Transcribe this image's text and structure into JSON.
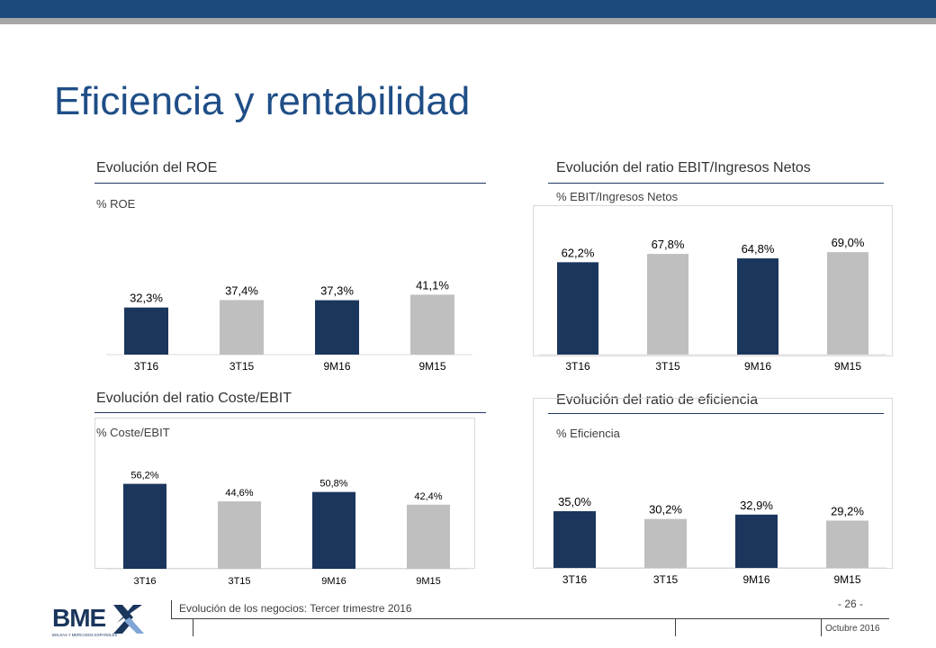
{
  "page": {
    "title": "Eficiencia y rentabilidad",
    "footer": "Evolución de los negocios: Tercer trimestre 2016",
    "page_number": "- 26 -",
    "date": "Octubre 2016",
    "logo_text": "BME",
    "logo_tagline": "BOLSAS Y MERCADOS ESPAÑOLES"
  },
  "colors": {
    "dark": "#1b365d",
    "light": "#bfbfbf",
    "title": "#1f4e87",
    "bar_top": "#1b4a7c"
  },
  "chart_data": [
    {
      "type": "bar",
      "title": "Evolución del ROE",
      "unit_label": "% ROE",
      "categories": [
        "3T16",
        "3T15",
        "9M16",
        "9M15"
      ],
      "values": [
        32.3,
        37.4,
        37.3,
        41.1
      ],
      "labels": [
        "32,3%",
        "37,4%",
        "37,3%",
        "41,1%"
      ]
    },
    {
      "type": "bar",
      "title": "Evolución del ratio EBIT/Ingresos Netos",
      "unit_label": "% EBIT/Ingresos Netos",
      "categories": [
        "3T16",
        "3T15",
        "9M16",
        "9M15"
      ],
      "values": [
        62.2,
        67.8,
        64.8,
        69.0
      ],
      "labels": [
        "62,2%",
        "67,8%",
        "64,8%",
        "69,0%"
      ]
    },
    {
      "type": "bar",
      "title": "Evolución del ratio Coste/EBIT",
      "unit_label": "% Coste/EBIT",
      "categories": [
        "3T16",
        "3T15",
        "9M16",
        "9M15"
      ],
      "values": [
        56.2,
        44.6,
        50.8,
        42.4
      ],
      "labels": [
        "56,2%",
        "44,6%",
        "50,8%",
        "42,4%"
      ]
    },
    {
      "type": "bar",
      "title": "Evolución del ratio de eficiencia",
      "unit_label": "% Eficiencia",
      "categories": [
        "3T16",
        "3T15",
        "9M16",
        "9M15"
      ],
      "values": [
        35.0,
        30.2,
        32.9,
        29.2
      ],
      "labels": [
        "35,0%",
        "30,2%",
        "32,9%",
        "29,2%"
      ]
    }
  ]
}
